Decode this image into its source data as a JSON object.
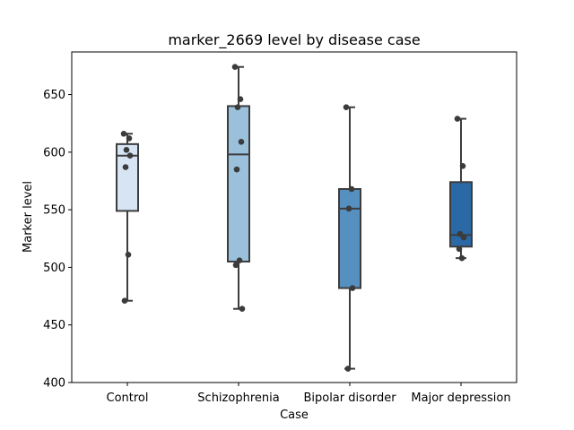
{
  "chart_data": {
    "type": "box",
    "title": "marker_2669 level by disease case",
    "xlabel": "Case",
    "ylabel": "Marker level",
    "ylim": [
      400,
      687
    ],
    "yticks": [
      400,
      450,
      500,
      550,
      600,
      650
    ],
    "grid": false,
    "categories": [
      "Control",
      "Schizophrenia",
      "Bipolar disorder",
      "Major depression"
    ],
    "boxes": [
      {
        "category": "Control",
        "color": "#d6e4f3",
        "whisker_low": 471,
        "q1": 549,
        "median": 597,
        "q3": 607,
        "whisker_high": 616,
        "points": [
          616,
          612,
          602,
          597,
          587,
          511,
          471
        ]
      },
      {
        "category": "Schizophrenia",
        "color": "#9ac0db",
        "whisker_low": 464,
        "q1": 505,
        "median": 598,
        "q3": 640,
        "whisker_high": 674,
        "points": [
          674,
          646,
          639,
          609,
          585,
          506,
          502,
          464
        ]
      },
      {
        "category": "Bipolar disorder",
        "color": "#5590c0",
        "whisker_low": 412,
        "q1": 482,
        "median": 551,
        "q3": 568,
        "whisker_high": 639,
        "points": [
          639,
          568,
          551,
          482,
          412
        ]
      },
      {
        "category": "Major depression",
        "color": "#2a69a6",
        "whisker_low": 508,
        "q1": 518,
        "median": 528,
        "q3": 574,
        "whisker_high": 629,
        "points": [
          629,
          588,
          529,
          526,
          516,
          508
        ]
      }
    ]
  }
}
